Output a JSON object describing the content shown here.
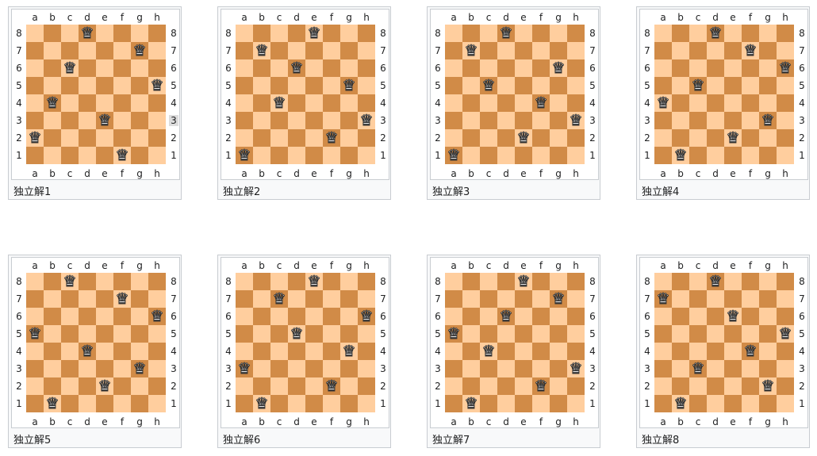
{
  "files": [
    "a",
    "b",
    "c",
    "d",
    "e",
    "f",
    "g",
    "h"
  ],
  "ranks": [
    "8",
    "7",
    "6",
    "5",
    "4",
    "3",
    "2",
    "1"
  ],
  "colors": {
    "light_square": "#ffce9e",
    "dark_square": "#d18b47",
    "frame_border": "#c8ccd1",
    "caption_bg": "#f8f9fa"
  },
  "queen_icon": "white-queen-icon",
  "highlighted_label": {
    "solution": 1,
    "side": "right",
    "rank": "3"
  },
  "solutions": [
    {
      "caption": "独立解1",
      "queens_by_rank_8_to_1": [
        "d",
        "g",
        "c",
        "h",
        "b",
        "e",
        "a",
        "f"
      ]
    },
    {
      "caption": "独立解2",
      "queens_by_rank_8_to_1": [
        "e",
        "b",
        "d",
        "g",
        "c",
        "h",
        "f",
        "a"
      ]
    },
    {
      "caption": "独立解3",
      "queens_by_rank_8_to_1": [
        "d",
        "b",
        "g",
        "c",
        "f",
        "h",
        "e",
        "a"
      ]
    },
    {
      "caption": "独立解4",
      "queens_by_rank_8_to_1": [
        "d",
        "f",
        "h",
        "c",
        "a",
        "g",
        "e",
        "b"
      ]
    },
    {
      "caption": "独立解5",
      "queens_by_rank_8_to_1": [
        "c",
        "f",
        "h",
        "a",
        "d",
        "g",
        "e",
        "b"
      ]
    },
    {
      "caption": "独立解6",
      "queens_by_rank_8_to_1": [
        "e",
        "c",
        "h",
        "d",
        "g",
        "a",
        "f",
        "b"
      ]
    },
    {
      "caption": "独立解7",
      "queens_by_rank_8_to_1": [
        "e",
        "g",
        "d",
        "a",
        "c",
        "h",
        "f",
        "b"
      ]
    },
    {
      "caption": "独立解8",
      "queens_by_rank_8_to_1": [
        "d",
        "a",
        "e",
        "h",
        "f",
        "c",
        "g",
        "b"
      ]
    }
  ]
}
